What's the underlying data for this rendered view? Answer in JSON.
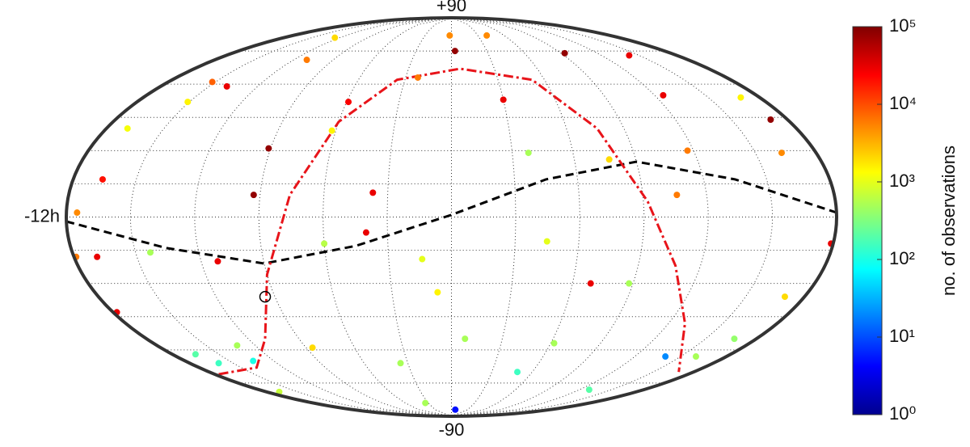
{
  "chart_data": {
    "type": "scatter",
    "projection": "elliptical",
    "x": [
      -125,
      -2,
      40,
      3,
      -152,
      -139,
      93,
      142,
      -151,
      -169,
      -166,
      -175,
      -179,
      -169,
      -178,
      -165,
      -160,
      -134,
      -168,
      7,
      -34,
      140,
      160,
      167,
      179,
      163,
      171,
      169,
      125,
      30,
      -59,
      -91,
      -93,
      -112,
      -40,
      -37,
      -14,
      -7,
      45,
      62,
      129,
      49,
      117,
      106,
      77,
      69,
      88,
      170,
      -86,
      -62,
      8,
      -35,
      -60,
      -143,
      -131,
      38,
      -22,
      -110
    ],
    "y": [
      81,
      82,
      82,
      75,
      61,
      59,
      74,
      73,
      52,
      40,
      17,
      2,
      -18,
      -18,
      -43,
      -62,
      -66,
      -65,
      -79,
      -87,
      -84,
      -63,
      -63,
      -55,
      -12,
      29,
      44,
      54,
      55,
      53,
      52,
      31,
      10,
      -20,
      -7,
      11,
      -19,
      -34,
      -11,
      -57,
      -78,
      -70,
      30,
      10,
      26,
      -30,
      -30,
      -36,
      -59,
      39,
      -55,
      -66,
      -12,
      -16,
      -58,
      29,
      63,
      71
    ],
    "values": [
      2000,
      5000,
      5000,
      80000,
      8000,
      30000,
      80000,
      30000,
      1500,
      1200,
      20000,
      5000,
      6000,
      30000,
      30000,
      200,
      150,
      100,
      700,
      5,
      500,
      20,
      500,
      400,
      30000,
      5000,
      80000,
      1500,
      30000,
      30000,
      25000,
      80000,
      80000,
      30000,
      30000,
      30000,
      1000,
      1500,
      1000,
      500,
      200,
      150,
      6000,
      6000,
      2000,
      30000,
      500,
      2000,
      2000,
      1500,
      500,
      500,
      600,
      500,
      500,
      500,
      6000,
      6000
    ],
    "xlim": [
      -180,
      180
    ],
    "ylim": [
      -90,
      90
    ],
    "xticks": [
      {
        "value": -180,
        "label": "-12h"
      }
    ],
    "yticks": [
      {
        "value": 90,
        "label": "+90"
      },
      -90
    ],
    "lon_grid": [
      -150,
      -120,
      -90,
      -60,
      -30,
      0,
      30,
      60,
      90,
      120,
      150
    ],
    "lat_grid": [
      -75,
      -60,
      -45,
      -30,
      -15,
      0,
      15,
      30,
      45,
      60,
      75
    ],
    "lines": [
      {
        "color": "#000000",
        "x": [
          -180,
          -135,
          -90,
          -45,
          0,
          45,
          90,
          135,
          180
        ],
        "y": [
          -2,
          -14,
          -21,
          -13,
          1,
          17,
          25,
          17,
          2
        ]
      },
      {
        "color": "#e8141a",
        "x": [
          -177,
          -139,
          -110,
          -90,
          -76,
          -60,
          -35,
          6,
          52,
          76,
          92,
          108,
          129,
          169
        ],
        "y": [
          -71,
          -68,
          -55,
          -26,
          10,
          43,
          62,
          67,
          62,
          40,
          7,
          -22,
          -48,
          -70
        ]
      }
    ],
    "marker": {
      "x": -95,
      "y": -36
    },
    "colorbar": {
      "label": "no. of observations",
      "scale": "log",
      "colormap": "jet",
      "lim": [
        1,
        100000
      ],
      "ticks": [
        {
          "value": 1,
          "label": "10⁰"
        },
        {
          "value": 10,
          "label": "10¹"
        },
        {
          "value": 100,
          "label": "10²"
        },
        {
          "value": 1000,
          "label": "10³"
        },
        {
          "value": 10000,
          "label": "10⁴"
        },
        {
          "value": 100000,
          "label": "10⁵"
        }
      ]
    }
  }
}
